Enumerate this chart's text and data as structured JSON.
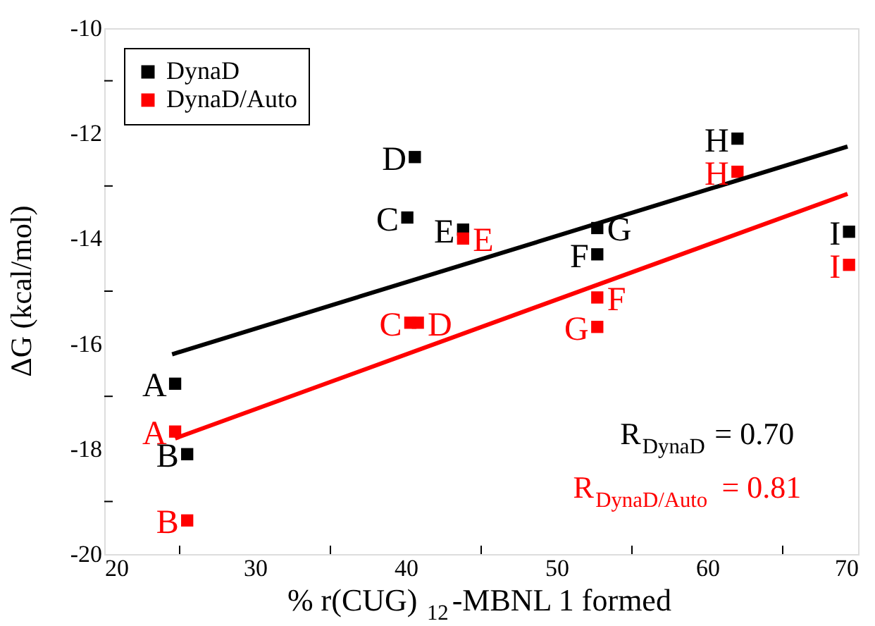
{
  "chart_data": {
    "type": "scatter",
    "xlabel": "% r(CUG)$_{12}$-MBNL 1 formed",
    "ylabel": "ΔG (kcal/mol)",
    "xlim": [
      20,
      70
    ],
    "ylim": [
      -20,
      -10
    ],
    "xticks": [
      20,
      {
        "value": 25,
        "label": null
      },
      30,
      {
        "value": 35,
        "label": null
      },
      40,
      {
        "value": 45,
        "label": null
      },
      50,
      {
        "value": 55,
        "label": null
      },
      60,
      {
        "value": 65,
        "label": null
      },
      70
    ],
    "yticks": [
      -20,
      {
        "value": -19,
        "label": null
      },
      -18,
      {
        "value": -17,
        "label": null
      },
      -16,
      {
        "value": -15,
        "label": null
      },
      -14,
      {
        "value": -13,
        "label": null
      },
      -12,
      {
        "value": -11,
        "label": null
      },
      -10
    ],
    "marker": "square",
    "legend": "top left",
    "grid": false,
    "series": [
      {
        "name": "DynaD",
        "color": "#000000",
        "x": [
          24.7,
          25.5,
          40.1,
          40.6,
          43.8,
          52.7,
          52.7,
          62.0,
          69.4
        ],
        "values": [
          -16.76,
          -18.1,
          -13.6,
          -12.45,
          -13.83,
          -14.3,
          -13.8,
          -12.1,
          -13.87
        ]
      },
      {
        "name": "DynaD/Auto",
        "color": "#ff0000",
        "x": [
          24.7,
          25.5,
          40.3,
          40.8,
          43.8,
          52.7,
          52.7,
          62.0,
          69.4
        ],
        "values": [
          -17.67,
          -19.36,
          -15.6,
          -15.6,
          -14.0,
          -15.12,
          -15.68,
          -12.73,
          -14.5
        ]
      },
      {
        "type": "line",
        "marker": "none",
        "color": "#000000",
        "x": [
          24.5,
          69.3
        ],
        "values": [
          -16.2,
          -12.25
        ]
      },
      {
        "type": "line",
        "marker": "none",
        "color": "#ff0000",
        "x": [
          24.7,
          69.3
        ],
        "values": [
          -17.8,
          -13.15
        ]
      }
    ],
    "annotations": [
      {
        "text": "A",
        "x": 24.7,
        "y": -16.76
      },
      {
        "text": "B",
        "x": 25.5,
        "y": -18.1
      },
      {
        "text": "C",
        "x": 40.1,
        "y": -13.6
      },
      {
        "text": "D",
        "x": 40.6,
        "y": -12.45
      },
      {
        "text": "E",
        "x": 43.8,
        "y": -13.83
      },
      {
        "text": "F",
        "x": 52.7,
        "y": -14.3
      },
      {
        "text": "G",
        "x": 52.7,
        "y": -13.8
      },
      {
        "text": "H",
        "x": 62.0,
        "y": -12.1
      },
      {
        "text": "I",
        "x": 69.4,
        "y": -13.87
      },
      {
        "text": "A",
        "x": 24.7,
        "y": -17.67
      },
      {
        "text": "B",
        "x": 25.5,
        "y": -19.36
      },
      {
        "text": "C",
        "x": 40.3,
        "y": -15.6
      },
      {
        "text": "D",
        "x": 40.8,
        "y": -15.6
      },
      {
        "text": "E",
        "x": 43.8,
        "y": -14.0
      },
      {
        "text": "F",
        "x": 52.7,
        "y": -15.12
      },
      {
        "text": "G",
        "x": 52.7,
        "y": -15.68
      },
      {
        "text": "H",
        "x": 62.0,
        "y": -12.73
      },
      {
        "text": "I",
        "x": 69.4,
        "y": -14.5
      },
      "R$_{DynaD}$ = 0.70",
      "R$_{DynaD/Auto}$ = 0.81"
    ]
  }
}
